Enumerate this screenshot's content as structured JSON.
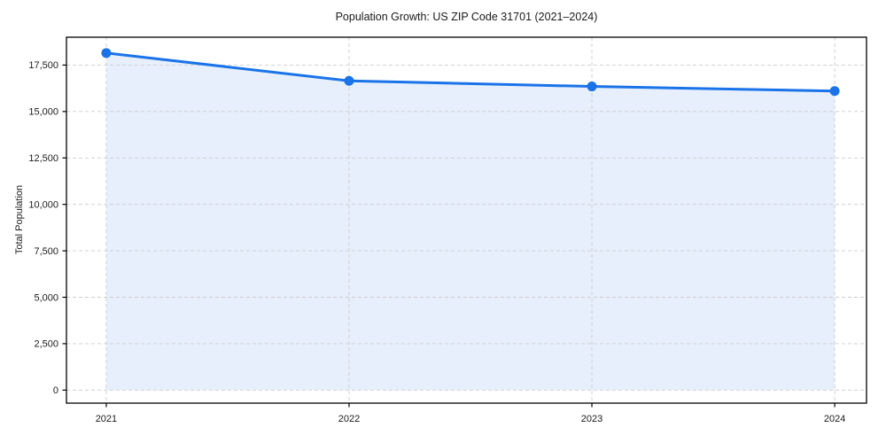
{
  "figure": {
    "title": "Population Growth: US ZIP Code 31701 (2021–2024)",
    "ylabel": "Total Population"
  },
  "chart_data": {
    "type": "area",
    "title": "Population Growth: US ZIP Code 31701 (2021–2024)",
    "xlabel": "",
    "ylabel": "Total Population",
    "x": [
      2021,
      2022,
      2023,
      2024
    ],
    "values": [
      18150,
      16650,
      16350,
      16100
    ],
    "series_name": "Total Population",
    "xlim": [
      2020.836,
      2024.131
    ],
    "ylim": [
      -700,
      19000
    ],
    "baseline": 0,
    "yticks": [
      0,
      2500,
      5000,
      7500,
      10000,
      12500,
      15000,
      17500
    ],
    "ytick_labels": [
      "0",
      "2,500",
      "5,000",
      "7,500",
      "10,000",
      "12,500",
      "15,000",
      "17,500"
    ],
    "xticks": [
      2021,
      2022,
      2023,
      2024
    ],
    "xtick_labels": [
      "2021",
      "2022",
      "2023",
      "2024"
    ],
    "grid": true,
    "grid_style": "dashed",
    "legend": "none",
    "marker": "circle",
    "colors": {
      "line": "#1a73e8",
      "marker": "#1a73e8",
      "fill": "#e7effc",
      "grid": "#cccccc",
      "spine": "#000000",
      "text": "#1a1a1a",
      "background": "#ffffff"
    }
  }
}
